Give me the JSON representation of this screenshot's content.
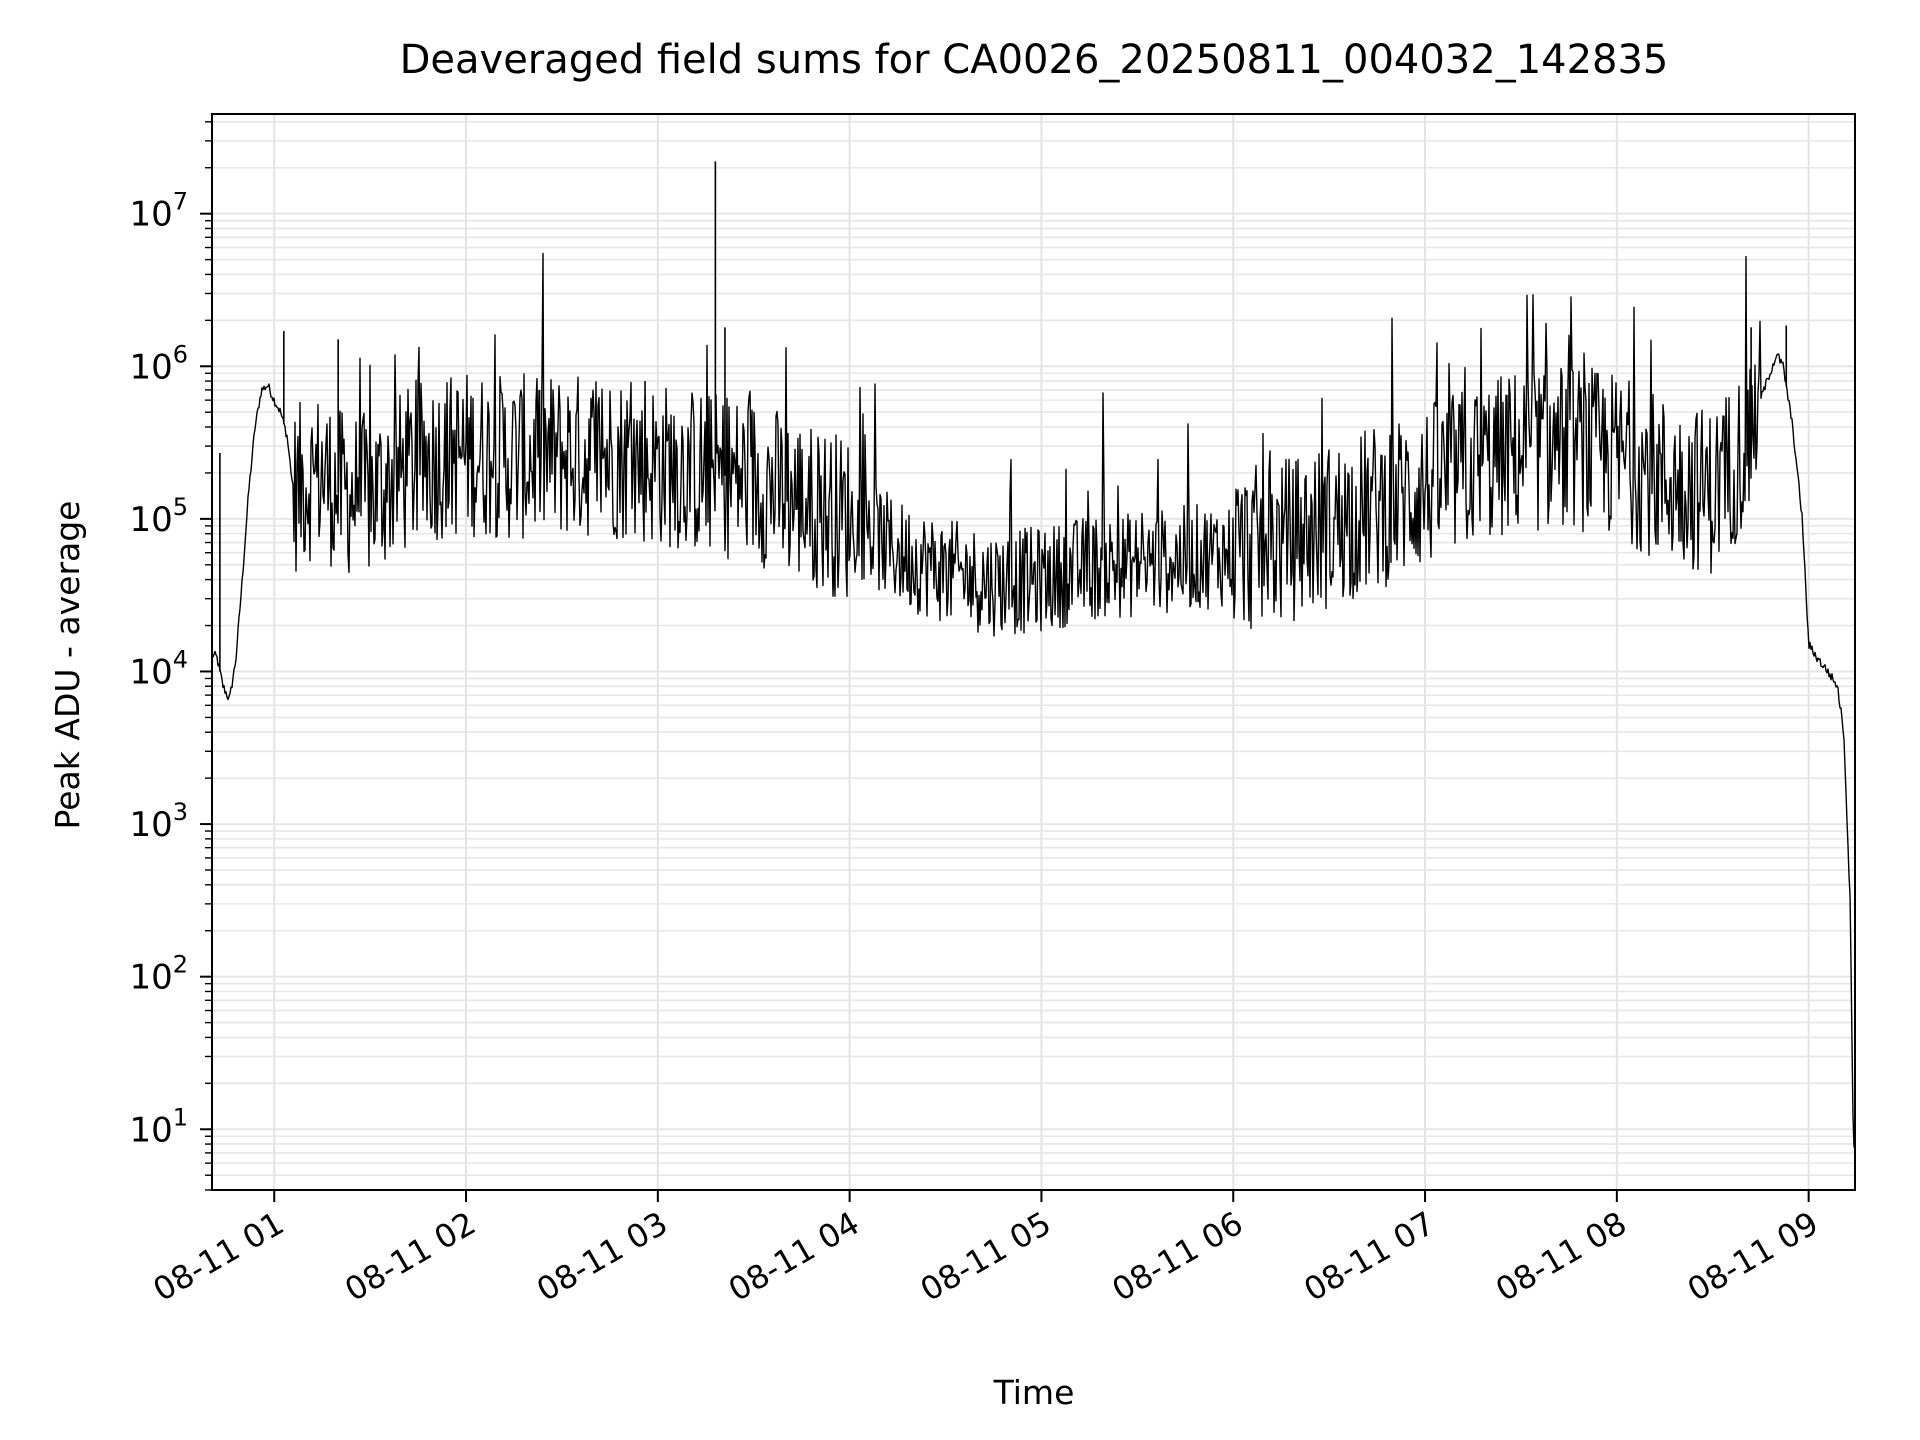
{
  "chart_data": {
    "type": "line",
    "title": "Deaveraged field sums for CA0026_20250811_004032_142835",
    "xlabel": "Time",
    "ylabel": "Peak ADU - average",
    "yscale": "log",
    "ylim": [
      4,
      45000000
    ],
    "xlim": [
      "2025-08-11 00:40:32",
      "2025-08-11 09:14:30"
    ],
    "grid": true,
    "line_color": "#000000",
    "x_ticks": [
      {
        "time": "2025-08-11 01:00",
        "label": "08-11 01"
      },
      {
        "time": "2025-08-11 02:00",
        "label": "08-11 02"
      },
      {
        "time": "2025-08-11 03:00",
        "label": "08-11 03"
      },
      {
        "time": "2025-08-11 04:00",
        "label": "08-11 04"
      },
      {
        "time": "2025-08-11 05:00",
        "label": "08-11 05"
      },
      {
        "time": "2025-08-11 06:00",
        "label": "08-11 06"
      },
      {
        "time": "2025-08-11 07:00",
        "label": "08-11 07"
      },
      {
        "time": "2025-08-11 08:00",
        "label": "08-11 08"
      },
      {
        "time": "2025-08-11 09:00",
        "label": "08-11 09"
      }
    ],
    "y_ticks": [
      {
        "value": 10,
        "base": "10",
        "exp": "1"
      },
      {
        "value": 100,
        "base": "10",
        "exp": "2"
      },
      {
        "value": 1000,
        "base": "10",
        "exp": "3"
      },
      {
        "value": 10000,
        "base": "10",
        "exp": "4"
      },
      {
        "value": 100000,
        "base": "10",
        "exp": "5"
      },
      {
        "value": 1000000,
        "base": "10",
        "exp": "6"
      },
      {
        "value": 10000000,
        "base": "10",
        "exp": "7"
      }
    ],
    "series": [
      {
        "points": [
          [
            "2025-08-11 00:40",
            13000
          ],
          [
            "2025-08-11 00:42",
            12500
          ],
          [
            "2025-08-11 00:44",
            8000
          ],
          [
            "2025-08-11 00:46",
            6500
          ],
          [
            "2025-08-11 00:48",
            12000
          ],
          [
            "2025-08-11 00:50",
            40000
          ],
          [
            "2025-08-11 00:52",
            150000
          ],
          [
            "2025-08-11 00:54",
            400000
          ],
          [
            "2025-08-11 00:56",
            700000
          ],
          [
            "2025-08-11 00:58",
            750000
          ],
          [
            "2025-08-11 01:00",
            600000
          ],
          [
            "2025-08-11 01:02",
            500000
          ],
          [
            "2025-08-11 01:04",
            350000
          ],
          [
            "2025-08-11 01:06",
            150000
          ],
          [
            "2025-08-11 01:10",
            180000
          ],
          [
            "2025-08-11 01:15",
            200000
          ],
          [
            "2025-08-11 01:20",
            150000
          ],
          [
            "2025-08-11 01:30",
            140000
          ],
          [
            "2025-08-11 01:40",
            200000
          ],
          [
            "2025-08-11 01:50",
            250000
          ],
          [
            "2025-08-11 02:00",
            270000
          ],
          [
            "2025-08-11 02:15",
            250000
          ],
          [
            "2025-08-11 02:30",
            260000
          ],
          [
            "2025-08-11 02:45",
            260000
          ],
          [
            "2025-08-11 03:00",
            230000
          ],
          [
            "2025-08-11 03:15",
            200000
          ],
          [
            "2025-08-11 03:30",
            180000
          ],
          [
            "2025-08-11 03:45",
            130000
          ],
          [
            "2025-08-11 04:00",
            100000
          ],
          [
            "2025-08-11 04:15",
            60000
          ],
          [
            "2025-08-11 04:30",
            45000
          ],
          [
            "2025-08-11 04:45",
            38000
          ],
          [
            "2025-08-11 05:00",
            40000
          ],
          [
            "2025-08-11 05:15",
            48000
          ],
          [
            "2025-08-11 05:30",
            50000
          ],
          [
            "2025-08-11 05:45",
            55000
          ],
          [
            "2025-08-11 06:00",
            60000
          ],
          [
            "2025-08-11 06:15",
            70000
          ],
          [
            "2025-08-11 06:30",
            90000
          ],
          [
            "2025-08-11 06:45",
            120000
          ],
          [
            "2025-08-11 07:00",
            160000
          ],
          [
            "2025-08-11 07:15",
            220000
          ],
          [
            "2025-08-11 07:30",
            280000
          ],
          [
            "2025-08-11 07:45",
            300000
          ],
          [
            "2025-08-11 08:00",
            260000
          ],
          [
            "2025-08-11 08:15",
            180000
          ],
          [
            "2025-08-11 08:30",
            150000
          ],
          [
            "2025-08-11 08:40",
            300000
          ],
          [
            "2025-08-11 08:46",
            700000
          ],
          [
            "2025-08-11 08:50",
            1200000
          ],
          [
            "2025-08-11 08:52",
            1000000
          ],
          [
            "2025-08-11 08:55",
            400000
          ],
          [
            "2025-08-11 08:58",
            100000
          ],
          [
            "2025-08-11 09:00",
            15000
          ],
          [
            "2025-08-11 09:03",
            12000
          ],
          [
            "2025-08-11 09:06",
            10000
          ],
          [
            "2025-08-11 09:09",
            8000
          ],
          [
            "2025-08-11 09:11",
            4000
          ],
          [
            "2025-08-11 09:13",
            300
          ],
          [
            "2025-08-11 09:14",
            8
          ]
        ],
        "spikes": [
          [
            "2025-08-11 00:43",
            270000
          ],
          [
            "2025-08-11 01:03",
            1700000
          ],
          [
            "2025-08-11 01:20",
            1500000
          ],
          [
            "2025-08-11 02:23",
            700000
          ],
          [
            "2025-08-11 02:56",
            800000
          ],
          [
            "2025-08-11 03:18",
            22000000
          ],
          [
            "2025-08-11 03:21",
            1800000
          ],
          [
            "2025-08-11 08:42",
            1800000
          ],
          [
            "2025-08-11 08:53",
            1850000
          ]
        ]
      }
    ]
  }
}
